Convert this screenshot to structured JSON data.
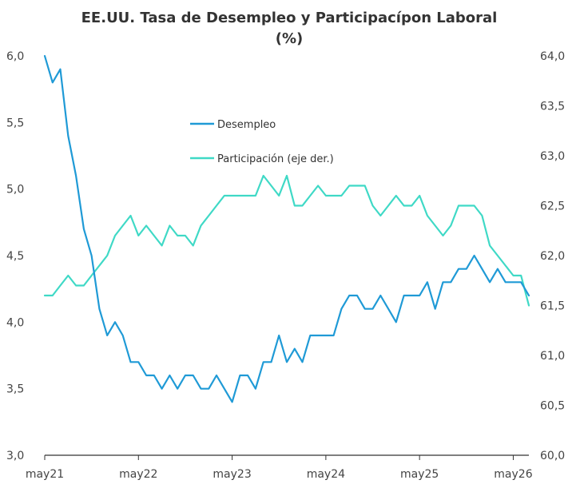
{
  "chart_data": {
    "type": "line",
    "title": "EE.UU. Tasa de Desempleo y Participacípon Laboral",
    "subtitle": "(%)",
    "x_tick_labels": [
      "may21",
      "may22",
      "may23",
      "may24",
      "may25",
      "may26"
    ],
    "x_tick_index": [
      0,
      12,
      24,
      36,
      48,
      60
    ],
    "left_axis": {
      "min": 3.0,
      "max": 6.0,
      "ticks": [
        "3,0",
        "3,5",
        "4,0",
        "4,5",
        "5,0",
        "5,5",
        "6,0"
      ]
    },
    "right_axis": {
      "min": 60.0,
      "max": 64.0,
      "ticks": [
        "60,0",
        "60,5",
        "61,0",
        "61,5",
        "62,0",
        "62,5",
        "63,0",
        "63,5",
        "64,0"
      ]
    },
    "grid": false,
    "legend_position": "center-top",
    "series": [
      {
        "name": "Desempleo",
        "axis": "left",
        "color": "#1f9ad6",
        "values": [
          6.0,
          5.8,
          5.9,
          5.4,
          5.1,
          4.7,
          4.5,
          4.1,
          3.9,
          4.0,
          3.9,
          3.7,
          3.7,
          3.6,
          3.6,
          3.5,
          3.6,
          3.5,
          3.6,
          3.6,
          3.5,
          3.5,
          3.6,
          3.5,
          3.4,
          3.6,
          3.6,
          3.5,
          3.7,
          3.7,
          3.9,
          3.7,
          3.8,
          3.7,
          3.9,
          3.9,
          3.9,
          3.9,
          4.1,
          4.2,
          4.2,
          4.1,
          4.1,
          4.2,
          4.1,
          4.0,
          4.2,
          4.2,
          4.2,
          4.3,
          4.1,
          4.3,
          4.3,
          4.4,
          4.4,
          4.5,
          4.4,
          4.3,
          4.4,
          4.3,
          4.3,
          4.3,
          4.2
        ]
      },
      {
        "name": "Participación (eje der.)",
        "axis": "right",
        "color": "#3fd9c6",
        "values": [
          61.6,
          61.6,
          61.7,
          61.8,
          61.7,
          61.7,
          61.8,
          61.9,
          62.0,
          62.2,
          62.3,
          62.4,
          62.2,
          62.3,
          62.2,
          62.1,
          62.3,
          62.2,
          62.2,
          62.1,
          62.3,
          62.4,
          62.5,
          62.6,
          62.6,
          62.6,
          62.6,
          62.6,
          62.8,
          62.7,
          62.6,
          62.8,
          62.5,
          62.5,
          62.6,
          62.7,
          62.6,
          62.6,
          62.6,
          62.7,
          62.7,
          62.7,
          62.5,
          62.4,
          62.5,
          62.6,
          62.5,
          62.5,
          62.6,
          62.4,
          62.3,
          62.2,
          62.3,
          62.5,
          62.5,
          62.5,
          62.4,
          62.1,
          62.0,
          61.9,
          61.8,
          61.8,
          61.5
        ]
      }
    ]
  }
}
